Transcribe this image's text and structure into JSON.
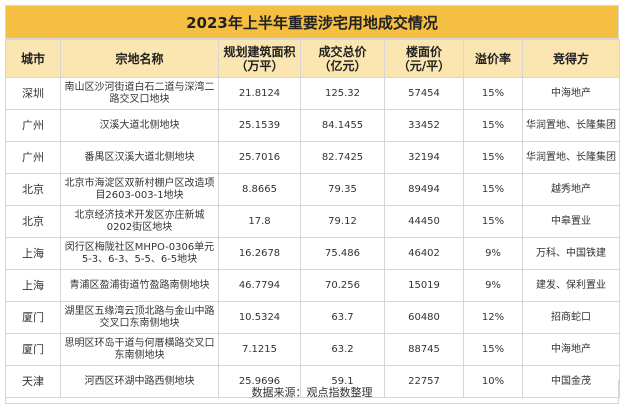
{
  "title": "2023年上半年重要涉宅用地成交情况",
  "headers": {
    "city": "城市",
    "plot": "宗地名称",
    "area": "规划建筑面积\n（万平）",
    "price": "成交总价\n（亿元）",
    "floor_price": "楼面价\n（元/平）",
    "premium": "溢价率",
    "buyer": "竞得方"
  },
  "rows": [
    {
      "city": "深圳",
      "plot": "南山区沙河街道白石二道与深湾二路交叉口地块",
      "area": "21.8124",
      "price": "125.32",
      "floor_price": "57454",
      "premium": "15%",
      "buyer": "中海地产"
    },
    {
      "city": "广州",
      "plot": "汉溪大道北侧地块",
      "area": "25.1539",
      "price": "84.1455",
      "floor_price": "33452",
      "premium": "15%",
      "buyer": "华润置地、长隆集团"
    },
    {
      "city": "广州",
      "plot": "番禺区汉溪大道北侧地块",
      "area": "25.7016",
      "price": "82.7425",
      "floor_price": "32194",
      "premium": "15%",
      "buyer": "华润置地、长隆集团"
    },
    {
      "city": "北京",
      "plot": "北京市海淀区双新村棚户区改造项目2603-003-1地块",
      "area": "8.8665",
      "price": "79.35",
      "floor_price": "89494",
      "premium": "15%",
      "buyer": "越秀地产"
    },
    {
      "city": "北京",
      "plot": "北京经济技术开发区亦庄新城0202街区地块",
      "area": "17.8",
      "price": "79.12",
      "floor_price": "44450",
      "premium": "15%",
      "buyer": "中皋置业"
    },
    {
      "city": "上海",
      "plot": "闵行区梅陇社区MHPO-0306单元5-3、6-3、5-5、6-5地块",
      "area": "16.2678",
      "price": "75.486",
      "floor_price": "46402",
      "premium": "9%",
      "buyer": "万科、中国铁建"
    },
    {
      "city": "上海",
      "plot": "青浦区盈浦街道竹盈路南侧地块",
      "area": "46.7794",
      "price": "70.256",
      "floor_price": "15019",
      "premium": "9%",
      "buyer": "建发、保利置业"
    },
    {
      "city": "厦门",
      "plot": "湖里区五缘湾云顶北路与金山中路交叉口东南侧地块",
      "area": "10.5324",
      "price": "63.7",
      "floor_price": "60480",
      "premium": "12%",
      "buyer": "招商蛇口"
    },
    {
      "city": "厦门",
      "plot": "思明区环岛干道与何厝横路交叉口东南侧地块",
      "area": "7.1215",
      "price": "63.2",
      "floor_price": "88745",
      "premium": "15%",
      "buyer": "中海地产"
    },
    {
      "city": "天津",
      "plot": "河西区环湖中路西侧地块",
      "area": "25.9696",
      "price": "59.1",
      "floor_price": "22757",
      "premium": "10%",
      "buyer": "中国金茂"
    }
  ],
  "source": "数据来源：观点指数整理"
}
